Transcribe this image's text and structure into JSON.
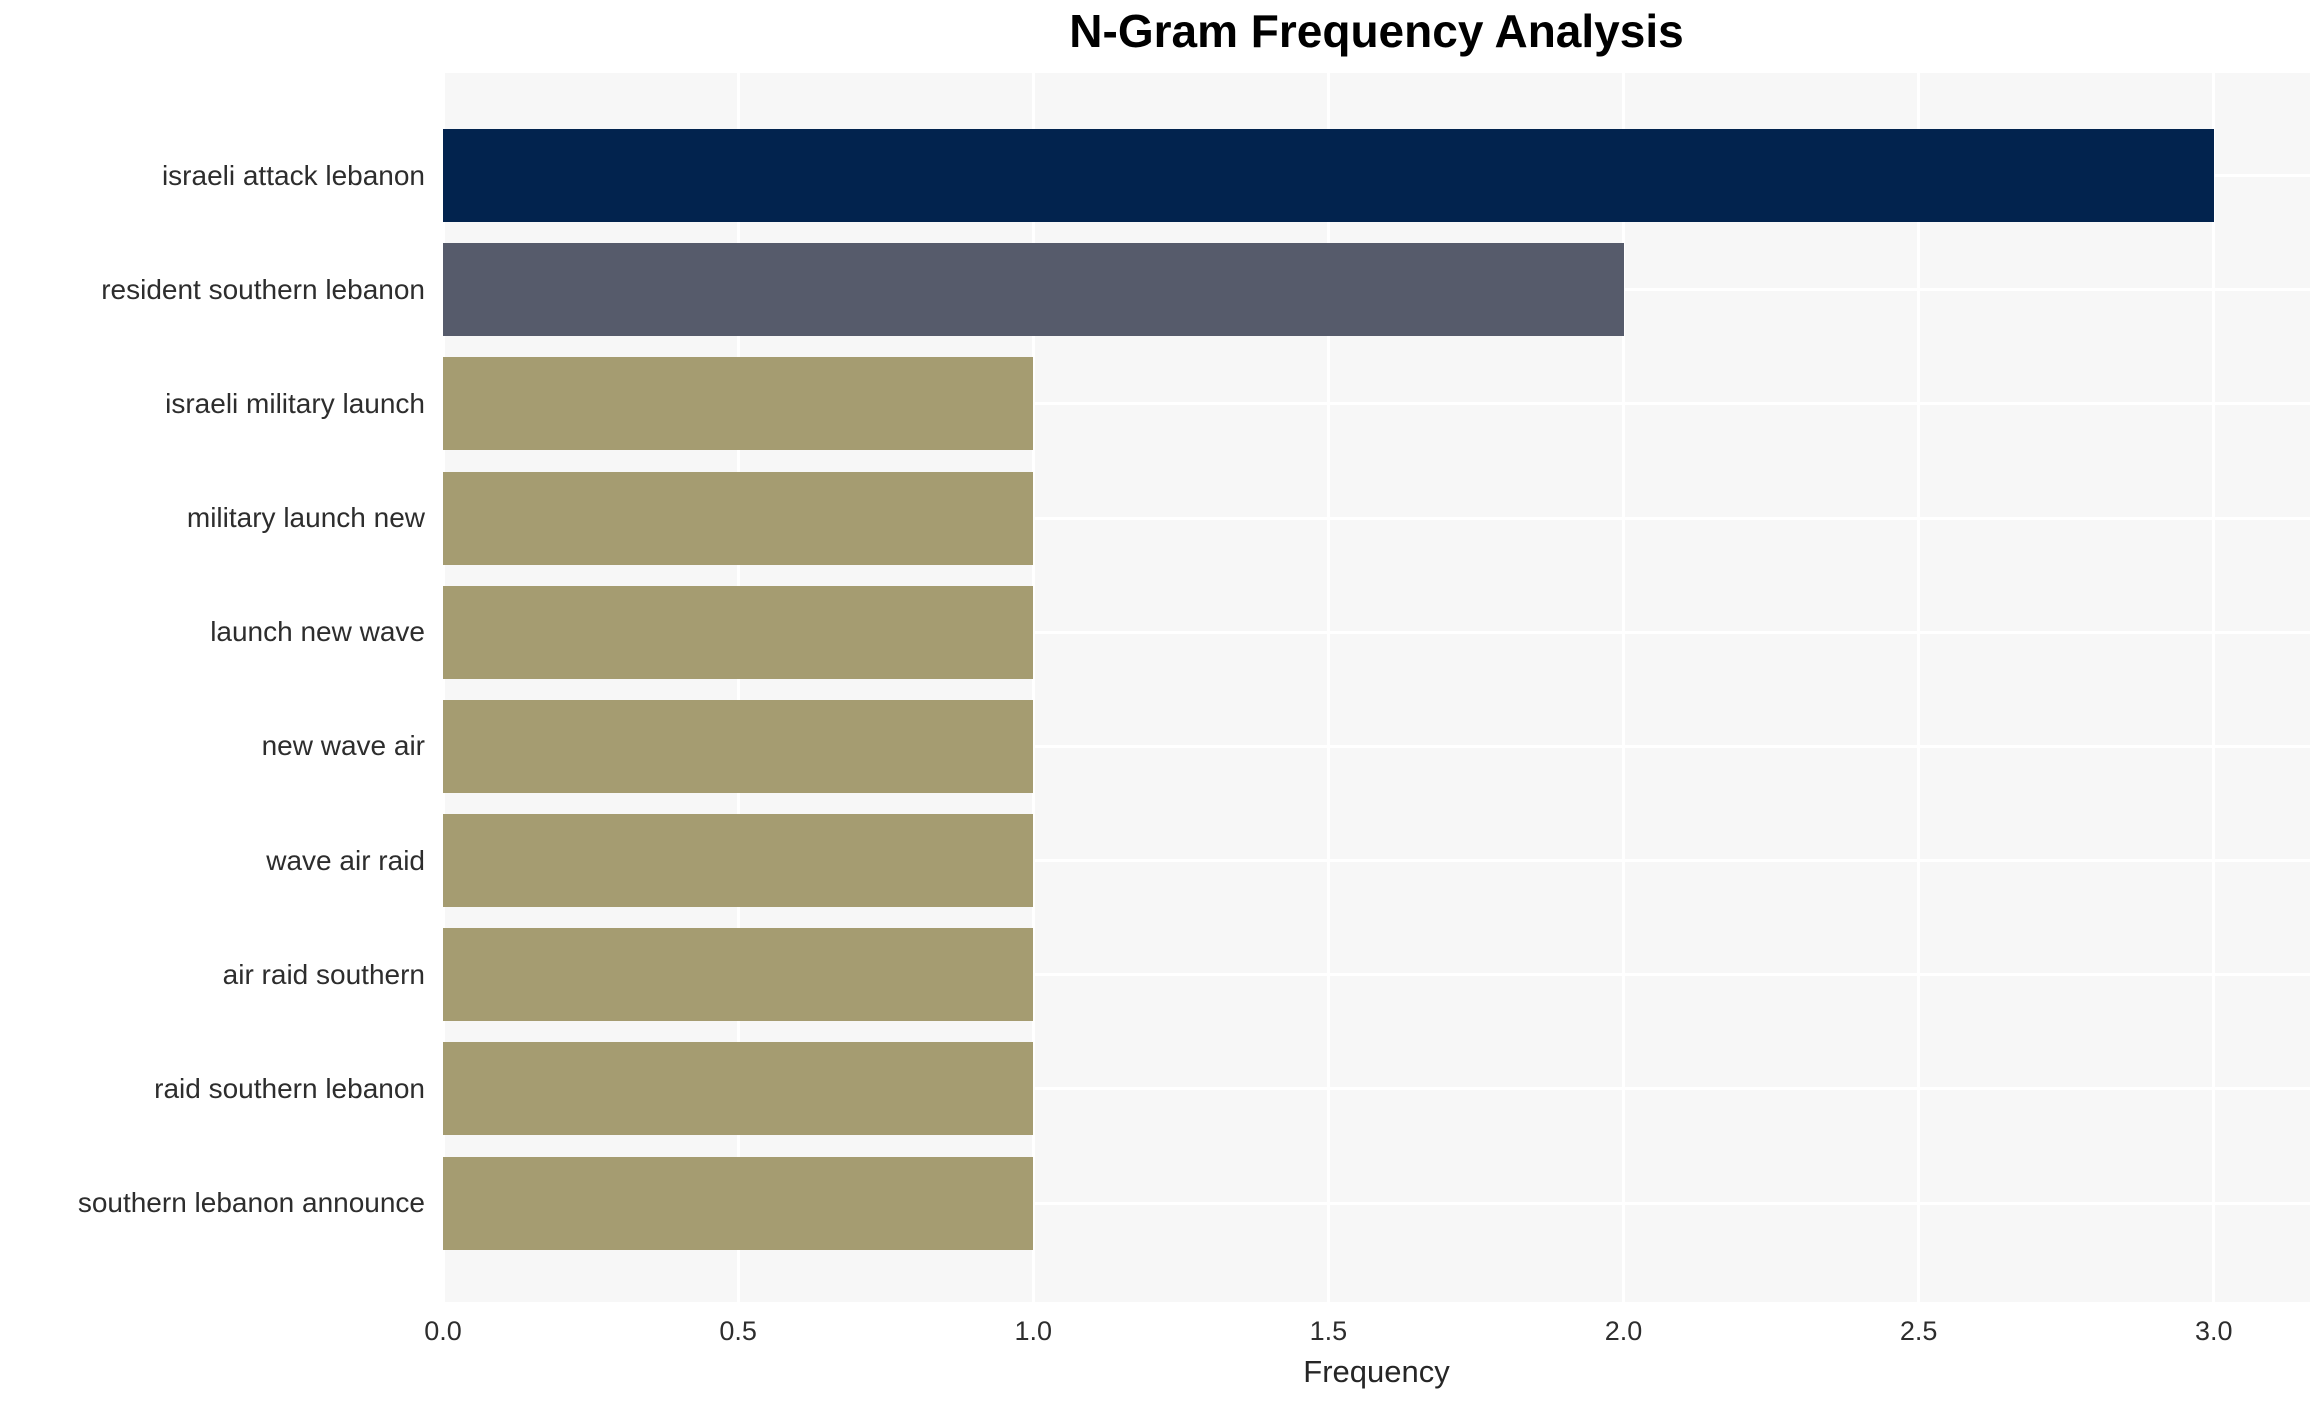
{
  "title": "N-Gram Frequency Analysis",
  "chart_data": {
    "type": "bar",
    "orientation": "horizontal",
    "title": "N-Gram Frequency Analysis",
    "xlabel": "Frequency",
    "ylabel": "",
    "categories": [
      "israeli attack lebanon",
      "resident southern lebanon",
      "israeli military launch",
      "military launch new",
      "launch new wave",
      "new wave air",
      "wave air raid",
      "air raid southern",
      "raid southern lebanon",
      "southern lebanon announce"
    ],
    "values": [
      3,
      2,
      1,
      1,
      1,
      1,
      1,
      1,
      1,
      1
    ],
    "bar_colors": [
      "#02234e",
      "#565b6b",
      "#a59c71",
      "#a59c71",
      "#a59c71",
      "#a59c71",
      "#a59c71",
      "#a59c71",
      "#a59c71",
      "#a59c71"
    ],
    "xticks": [
      0.0,
      0.5,
      1.0,
      1.5,
      2.0,
      2.5,
      3.0
    ],
    "xtick_labels": [
      "0.0",
      "0.5",
      "1.0",
      "1.5",
      "2.0",
      "2.5",
      "3.0"
    ],
    "xlim": [
      0,
      3.163
    ],
    "grid": true,
    "grid_color": "#ffffff",
    "plot_background": "#f7f7f7",
    "legend": false
  }
}
